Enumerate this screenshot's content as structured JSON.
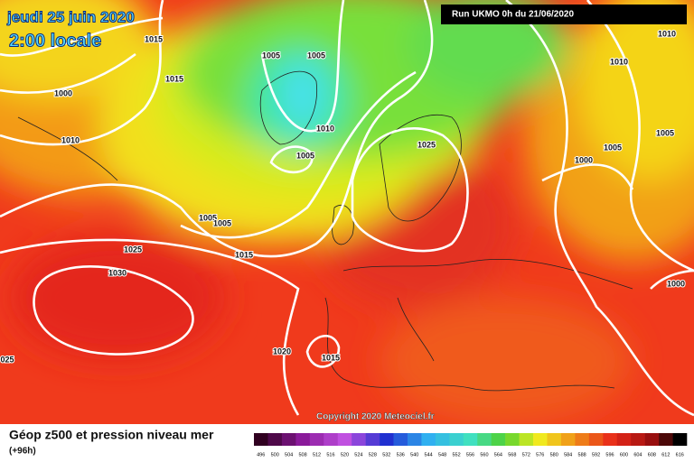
{
  "header": {
    "date": "jeudi 25 juin 2020",
    "time": "2:00 locale",
    "run": "Run UKMO 0h du 21/06/2020"
  },
  "isobar_labels": [
    "1015",
    "1005",
    "1005",
    "1015",
    "1000",
    "1010",
    "1010",
    "1005",
    "1025",
    "1005",
    "1005",
    "1025",
    "1015",
    "1030",
    "1020",
    "1015",
    "025",
    "1010",
    "1010",
    "1005",
    "1005",
    "1000",
    "1000"
  ],
  "copyright": "Copyright 2020 Meteociel.fr",
  "footer": {
    "title": "Géop z500 et pression niveau mer",
    "lead": "(+96h)"
  },
  "colorbar": {
    "labels": [
      496,
      500,
      504,
      508,
      512,
      516,
      520,
      524,
      528,
      532,
      536,
      540,
      544,
      548,
      552,
      556,
      560,
      564,
      568,
      572,
      576,
      580,
      584,
      588,
      592,
      596,
      600,
      604,
      608,
      612,
      616
    ]
  }
}
